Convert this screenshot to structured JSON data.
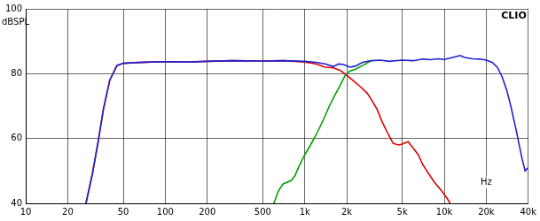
{
  "chart_data": {
    "type": "line",
    "ylabel": "dBSPL",
    "xlabel": "Hz",
    "annotation": "CLIO",
    "log": "x",
    "grid": true,
    "xlim": [
      10,
      40000
    ],
    "ylim": [
      40,
      100
    ],
    "xticks": [
      10,
      20,
      50,
      100,
      200,
      500,
      {
        "value": 1000,
        "label": "1k"
      },
      {
        "value": 2000,
        "label": "2k"
      },
      {
        "value": 5000,
        "label": "5k"
      },
      {
        "value": 10000,
        "label": "10k"
      },
      {
        "value": 20000,
        "label": "20k"
      },
      {
        "value": 40000,
        "label": "40k"
      }
    ],
    "yticks": [
      40,
      60,
      80,
      100
    ],
    "series": [
      {
        "color": "#2020d0",
        "x": [
          27,
          30,
          33,
          36,
          40,
          45,
          50,
          60,
          80,
          100,
          150,
          200,
          300,
          500,
          700,
          1000,
          1200,
          1400,
          1600,
          1750,
          1900,
          2100,
          2300,
          2600,
          3000,
          3500,
          4000,
          5000,
          6000,
          7000,
          8000,
          9000,
          10000,
          11000,
          12000,
          13000,
          14000,
          16000,
          18000,
          20000,
          22000,
          24000,
          26000,
          28000,
          30000,
          33000,
          36000,
          38000,
          40000
        ],
        "values": [
          40,
          49,
          59,
          69,
          78,
          82.5,
          83.2,
          83.4,
          83.6,
          83.7,
          83.6,
          83.8,
          84,
          83.9,
          84,
          83.8,
          83.5,
          83,
          82.2,
          83,
          82.8,
          82,
          82.3,
          83.5,
          84,
          84.2,
          83.8,
          84.2,
          84,
          84.5,
          84.3,
          84.6,
          84.4,
          84.8,
          85.2,
          85.6,
          85,
          84.6,
          84.5,
          84.2,
          83.5,
          82,
          79,
          75,
          70,
          62,
          54,
          50,
          51
        ]
      },
      {
        "color": "#e00000",
        "x": [
          27,
          30,
          33,
          36,
          40,
          45,
          50,
          60,
          80,
          100,
          150,
          200,
          300,
          500,
          700,
          1000,
          1200,
          1400,
          1600,
          1800,
          2000,
          2200,
          2500,
          2800,
          3000,
          3300,
          3600,
          4000,
          4300,
          4700,
          5000,
          5500,
          6000,
          6500,
          7000,
          7500,
          8500,
          9500,
          10500,
          11000
        ],
        "values": [
          40,
          49,
          59,
          69,
          78,
          82.5,
          83.2,
          83.4,
          83.6,
          83.7,
          83.6,
          83.8,
          84,
          83.9,
          84,
          83.6,
          83,
          82,
          81.8,
          81,
          79.5,
          78,
          76,
          74,
          72,
          69,
          65,
          61,
          58.5,
          58,
          58.3,
          59,
          57,
          55,
          52,
          50,
          46.5,
          44,
          41.5,
          40
        ]
      },
      {
        "color": "#00a000",
        "x": [
          600,
          650,
          700,
          800,
          850,
          900,
          1000,
          1100,
          1200,
          1300,
          1400,
          1500,
          1650,
          1800,
          1950,
          2100,
          2300,
          2600,
          3000
        ],
        "values": [
          40,
          44,
          46,
          47,
          48.5,
          51,
          55,
          58,
          61,
          64,
          67,
          70,
          73.5,
          76.5,
          79.5,
          80.8,
          81.3,
          82.5,
          84
        ]
      }
    ]
  }
}
